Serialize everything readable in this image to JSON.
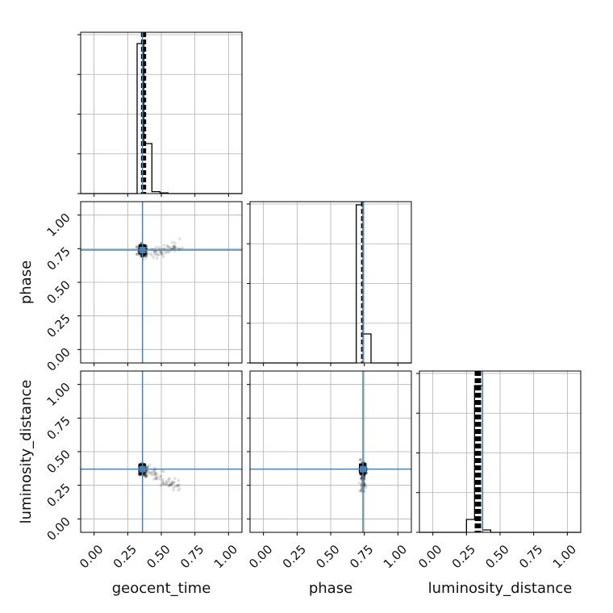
{
  "chart_data": {
    "type": "corner",
    "parameters": [
      "geocent_time",
      "phase",
      "luminosity_distance"
    ],
    "axis_range": [
      -0.1,
      1.1
    ],
    "tick_values": [
      0.0,
      0.25,
      0.5,
      0.75,
      1.0
    ],
    "tick_labels": [
      "0.00",
      "0.25",
      "0.50",
      "0.75",
      "1.00"
    ],
    "grid": true,
    "truths": {
      "geocent_time": 0.36,
      "phase": 0.74,
      "luminosity_distance": 0.37
    },
    "quantiles": {
      "geocent_time": [
        0.358,
        0.368,
        0.378
      ],
      "phase": [
        0.735
      ],
      "luminosity_distance": [
        0.32,
        0.335,
        0.35
      ]
    },
    "histograms": {
      "geocent_time": [
        {
          "x0": 0.32,
          "x1": 0.37,
          "height": 0.93
        },
        {
          "x0": 0.37,
          "x1": 0.43,
          "height": 0.31
        },
        {
          "x0": 0.43,
          "x1": 0.49,
          "height": 0.012
        },
        {
          "x0": 0.49,
          "x1": 0.55,
          "height": 0.004
        }
      ],
      "phase": [
        {
          "x0": 0.69,
          "x1": 0.74,
          "height": 0.98
        },
        {
          "x0": 0.74,
          "x1": 0.8,
          "height": 0.18
        }
      ],
      "luminosity_distance": [
        {
          "x0": 0.25,
          "x1": 0.31,
          "height": 0.08
        },
        {
          "x0": 0.31,
          "x1": 0.37,
          "height": 0.91
        },
        {
          "x0": 0.37,
          "x1": 0.43,
          "height": 0.015
        }
      ]
    },
    "truth_color": "#4682b4",
    "hist_color": "#000000",
    "sample_color": "#000000"
  }
}
